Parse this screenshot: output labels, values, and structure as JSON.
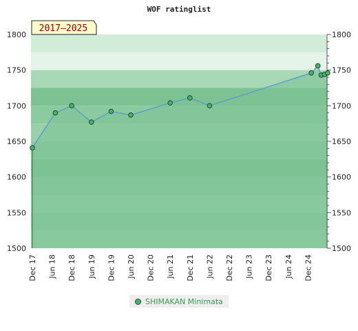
{
  "chart_data": {
    "type": "line",
    "title": "WOF ratinglist",
    "badge": "2017–2025",
    "ylim": [
      1500,
      1800
    ],
    "y_ticks": [
      1500,
      1550,
      1600,
      1650,
      1700,
      1750,
      1800
    ],
    "x_ticks": [
      "Dec 17",
      "Jun 18",
      "Dec 18",
      "Jun 19",
      "Dec 19",
      "Jun 20",
      "Dec 20",
      "Jun 21",
      "Dec 21",
      "Jun 22",
      "Dec 22",
      "Jun 23",
      "Dec 23",
      "Jun 24",
      "Dec 24"
    ],
    "grid": true,
    "legend_position": "bottom-center",
    "series": [
      {
        "name": "SHIMAKAN Minimata",
        "color": "#4caf6a",
        "points": [
          {
            "x": "2017-12",
            "y": 1641
          },
          {
            "x": "2018-07",
            "y": 1690
          },
          {
            "x": "2018-12",
            "y": 1700
          },
          {
            "x": "2019-06",
            "y": 1677
          },
          {
            "x": "2019-12",
            "y": 1692
          },
          {
            "x": "2020-06",
            "y": 1687
          },
          {
            "x": "2021-06",
            "y": 1704
          },
          {
            "x": "2021-12",
            "y": 1711
          },
          {
            "x": "2022-06",
            "y": 1700
          },
          {
            "x": "2025-01",
            "y": 1746
          },
          {
            "x": "2025-03",
            "y": 1756
          },
          {
            "x": "2025-04",
            "y": 1743
          },
          {
            "x": "2025-05",
            "y": 1744
          },
          {
            "x": "2025-06",
            "y": 1746
          }
        ]
      }
    ]
  }
}
